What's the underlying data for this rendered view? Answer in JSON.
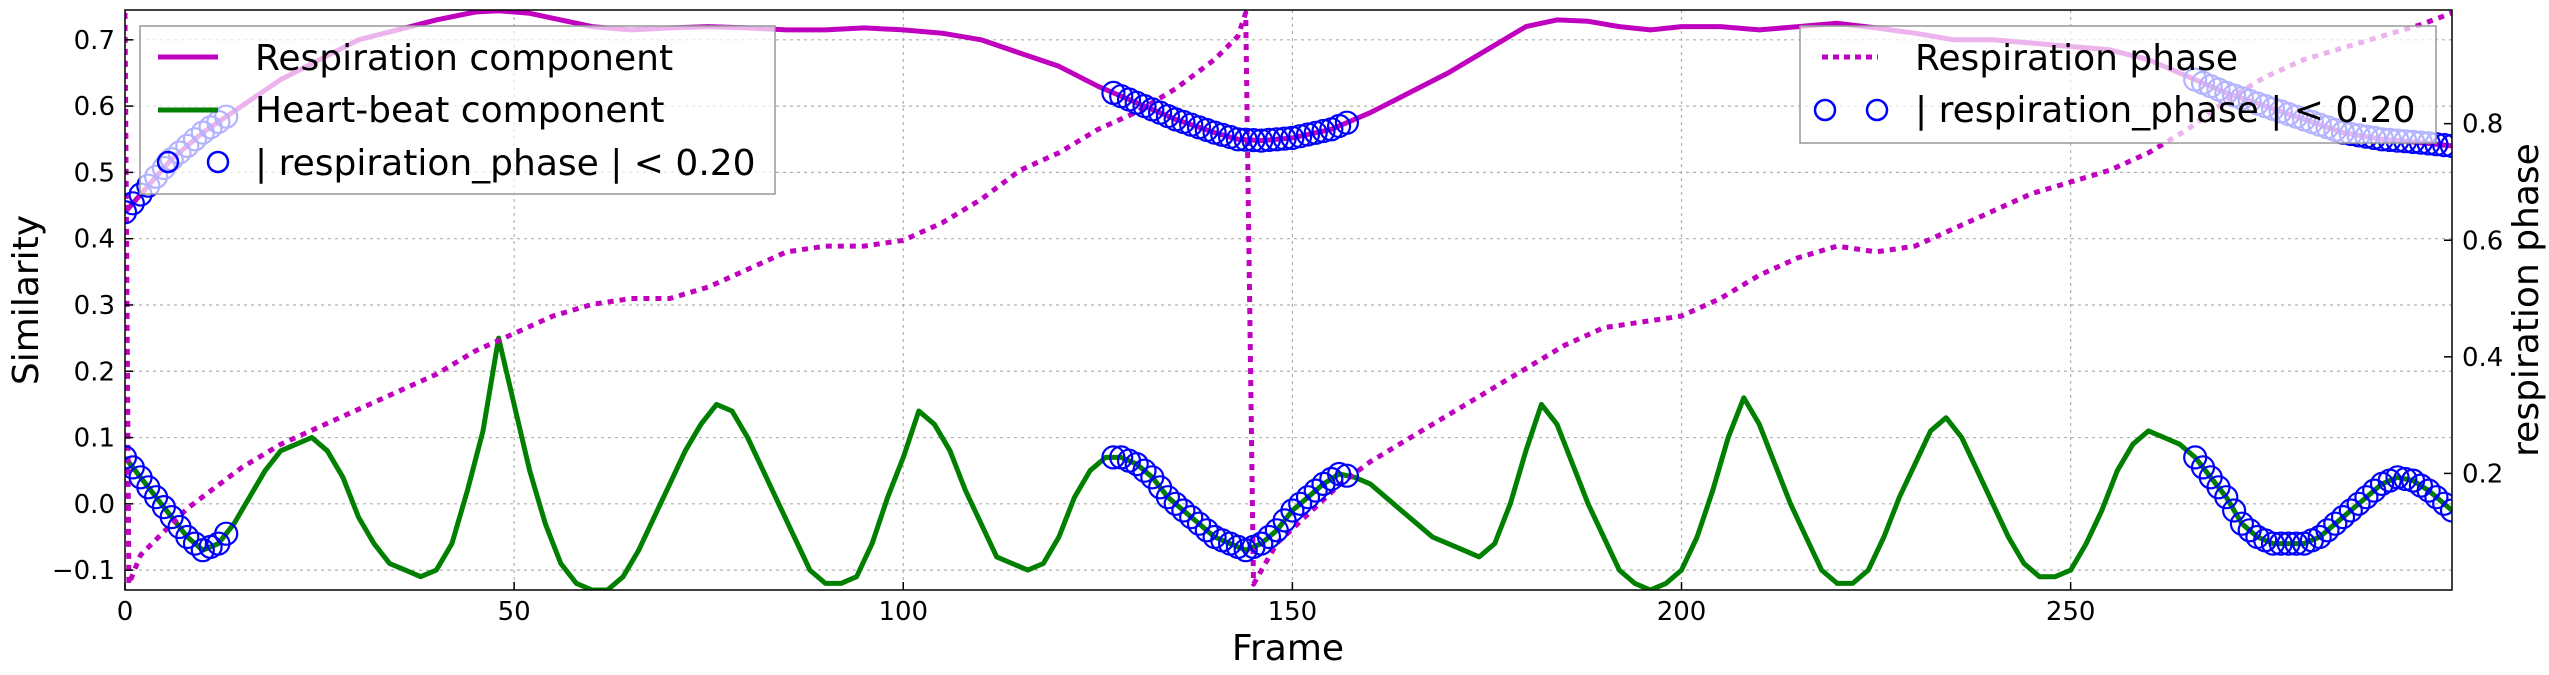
{
  "chart_data": {
    "type": "line",
    "xlabel": "Frame",
    "ylabel_left": "Similarity",
    "ylabel_right": "respiration phase",
    "xlim": [
      0,
      299
    ],
    "ylim_left": [
      -0.13,
      0.745
    ],
    "ylim_right": [
      0.0,
      0.995
    ],
    "x_ticks": [
      0,
      50,
      100,
      150,
      200,
      250
    ],
    "y_left_ticks": [
      -0.1,
      0.0,
      0.1,
      0.2,
      0.3,
      0.4,
      0.5,
      0.6,
      0.7
    ],
    "y_left_tick_labels": [
      "−0.1",
      "0.0",
      "0.1",
      "0.2",
      "0.3",
      "0.4",
      "0.5",
      "0.6",
      "0.7"
    ],
    "y_right_ticks": [
      0.2,
      0.4,
      0.6,
      0.8
    ],
    "y_right_tick_labels": [
      "0.2",
      "0.4",
      "0.6",
      "0.8"
    ],
    "grid": true,
    "marker_threshold": 0.2,
    "series": [
      {
        "name": "Respiration component",
        "axis": "left",
        "color": "#bf00bf",
        "style": "solid",
        "points": [
          [
            0,
            0.44
          ],
          [
            3,
            0.48
          ],
          [
            6,
            0.52
          ],
          [
            10,
            0.56
          ],
          [
            15,
            0.6
          ],
          [
            20,
            0.64
          ],
          [
            25,
            0.67
          ],
          [
            30,
            0.7
          ],
          [
            35,
            0.715
          ],
          [
            40,
            0.73
          ],
          [
            45,
            0.742
          ],
          [
            48,
            0.744
          ],
          [
            52,
            0.74
          ],
          [
            56,
            0.73
          ],
          [
            60,
            0.72
          ],
          [
            65,
            0.715
          ],
          [
            70,
            0.718
          ],
          [
            75,
            0.72
          ],
          [
            80,
            0.718
          ],
          [
            85,
            0.715
          ],
          [
            90,
            0.715
          ],
          [
            95,
            0.718
          ],
          [
            100,
            0.715
          ],
          [
            105,
            0.71
          ],
          [
            110,
            0.7
          ],
          [
            115,
            0.68
          ],
          [
            120,
            0.66
          ],
          [
            125,
            0.63
          ],
          [
            130,
            0.605
          ],
          [
            135,
            0.58
          ],
          [
            140,
            0.56
          ],
          [
            143,
            0.55
          ],
          [
            146,
            0.548
          ],
          [
            150,
            0.552
          ],
          [
            155,
            0.565
          ],
          [
            160,
            0.59
          ],
          [
            165,
            0.62
          ],
          [
            170,
            0.65
          ],
          [
            175,
            0.685
          ],
          [
            180,
            0.72
          ],
          [
            184,
            0.73
          ],
          [
            188,
            0.728
          ],
          [
            192,
            0.72
          ],
          [
            196,
            0.715
          ],
          [
            200,
            0.72
          ],
          [
            205,
            0.72
          ],
          [
            210,
            0.715
          ],
          [
            215,
            0.72
          ],
          [
            220,
            0.725
          ],
          [
            225,
            0.718
          ],
          [
            230,
            0.71
          ],
          [
            235,
            0.7
          ],
          [
            240,
            0.7
          ],
          [
            245,
            0.695
          ],
          [
            250,
            0.69
          ],
          [
            255,
            0.685
          ],
          [
            260,
            0.67
          ],
          [
            265,
            0.645
          ],
          [
            270,
            0.62
          ],
          [
            275,
            0.6
          ],
          [
            280,
            0.58
          ],
          [
            285,
            0.56
          ],
          [
            290,
            0.55
          ],
          [
            295,
            0.545
          ],
          [
            299,
            0.54
          ]
        ]
      },
      {
        "name": "Heart-beat component",
        "axis": "left",
        "color": "#007f00",
        "style": "solid",
        "points": [
          [
            0,
            0.07
          ],
          [
            2,
            0.04
          ],
          [
            4,
            0.01
          ],
          [
            6,
            -0.02
          ],
          [
            8,
            -0.05
          ],
          [
            10,
            -0.07
          ],
          [
            12,
            -0.06
          ],
          [
            14,
            -0.03
          ],
          [
            16,
            0.01
          ],
          [
            18,
            0.05
          ],
          [
            20,
            0.08
          ],
          [
            22,
            0.09
          ],
          [
            24,
            0.1
          ],
          [
            26,
            0.08
          ],
          [
            28,
            0.04
          ],
          [
            30,
            -0.02
          ],
          [
            32,
            -0.06
          ],
          [
            34,
            -0.09
          ],
          [
            36,
            -0.1
          ],
          [
            38,
            -0.11
          ],
          [
            40,
            -0.1
          ],
          [
            42,
            -0.06
          ],
          [
            44,
            0.02
          ],
          [
            46,
            0.11
          ],
          [
            48,
            0.25
          ],
          [
            50,
            0.15
          ],
          [
            52,
            0.05
          ],
          [
            54,
            -0.03
          ],
          [
            56,
            -0.09
          ],
          [
            58,
            -0.12
          ],
          [
            60,
            -0.13
          ],
          [
            62,
            -0.13
          ],
          [
            64,
            -0.11
          ],
          [
            66,
            -0.07
          ],
          [
            68,
            -0.02
          ],
          [
            70,
            0.03
          ],
          [
            72,
            0.08
          ],
          [
            74,
            0.12
          ],
          [
            76,
            0.15
          ],
          [
            78,
            0.14
          ],
          [
            80,
            0.1
          ],
          [
            82,
            0.05
          ],
          [
            84,
            0.0
          ],
          [
            86,
            -0.05
          ],
          [
            88,
            -0.1
          ],
          [
            90,
            -0.12
          ],
          [
            92,
            -0.12
          ],
          [
            94,
            -0.11
          ],
          [
            96,
            -0.06
          ],
          [
            98,
            0.01
          ],
          [
            100,
            0.07
          ],
          [
            102,
            0.14
          ],
          [
            104,
            0.12
          ],
          [
            106,
            0.08
          ],
          [
            108,
            0.02
          ],
          [
            110,
            -0.03
          ],
          [
            112,
            -0.08
          ],
          [
            114,
            -0.09
          ],
          [
            116,
            -0.1
          ],
          [
            118,
            -0.09
          ],
          [
            120,
            -0.05
          ],
          [
            122,
            0.01
          ],
          [
            124,
            0.05
          ],
          [
            126,
            0.07
          ],
          [
            128,
            0.07
          ],
          [
            130,
            0.06
          ],
          [
            132,
            0.04
          ],
          [
            134,
            0.01
          ],
          [
            136,
            -0.01
          ],
          [
            138,
            -0.03
          ],
          [
            140,
            -0.05
          ],
          [
            142,
            -0.06
          ],
          [
            144,
            -0.07
          ],
          [
            146,
            -0.06
          ],
          [
            148,
            -0.04
          ],
          [
            150,
            -0.01
          ],
          [
            152,
            0.01
          ],
          [
            154,
            0.03
          ],
          [
            156,
            0.045
          ],
          [
            158,
            0.04
          ],
          [
            160,
            0.03
          ],
          [
            162,
            0.01
          ],
          [
            164,
            -0.01
          ],
          [
            166,
            -0.03
          ],
          [
            168,
            -0.05
          ],
          [
            170,
            -0.06
          ],
          [
            172,
            -0.07
          ],
          [
            174,
            -0.08
          ],
          [
            176,
            -0.06
          ],
          [
            178,
            0.0
          ],
          [
            180,
            0.08
          ],
          [
            182,
            0.15
          ],
          [
            184,
            0.12
          ],
          [
            186,
            0.06
          ],
          [
            188,
            0.0
          ],
          [
            190,
            -0.05
          ],
          [
            192,
            -0.1
          ],
          [
            194,
            -0.12
          ],
          [
            196,
            -0.13
          ],
          [
            198,
            -0.12
          ],
          [
            200,
            -0.1
          ],
          [
            202,
            -0.05
          ],
          [
            204,
            0.02
          ],
          [
            206,
            0.1
          ],
          [
            208,
            0.16
          ],
          [
            210,
            0.12
          ],
          [
            212,
            0.06
          ],
          [
            214,
            0.0
          ],
          [
            216,
            -0.05
          ],
          [
            218,
            -0.1
          ],
          [
            220,
            -0.12
          ],
          [
            222,
            -0.12
          ],
          [
            224,
            -0.1
          ],
          [
            226,
            -0.05
          ],
          [
            228,
            0.01
          ],
          [
            230,
            0.06
          ],
          [
            232,
            0.11
          ],
          [
            234,
            0.13
          ],
          [
            236,
            0.1
          ],
          [
            238,
            0.05
          ],
          [
            240,
            0.0
          ],
          [
            242,
            -0.05
          ],
          [
            244,
            -0.09
          ],
          [
            246,
            -0.11
          ],
          [
            248,
            -0.11
          ],
          [
            250,
            -0.1
          ],
          [
            252,
            -0.06
          ],
          [
            254,
            -0.01
          ],
          [
            256,
            0.05
          ],
          [
            258,
            0.09
          ],
          [
            260,
            0.11
          ],
          [
            262,
            0.1
          ],
          [
            264,
            0.09
          ],
          [
            266,
            0.07
          ],
          [
            268,
            0.04
          ],
          [
            270,
            0.01
          ],
          [
            272,
            -0.03
          ],
          [
            274,
            -0.05
          ],
          [
            276,
            -0.06
          ],
          [
            278,
            -0.06
          ],
          [
            280,
            -0.06
          ],
          [
            282,
            -0.05
          ],
          [
            284,
            -0.03
          ],
          [
            286,
            -0.01
          ],
          [
            288,
            0.01
          ],
          [
            290,
            0.03
          ],
          [
            292,
            0.04
          ],
          [
            294,
            0.035
          ],
          [
            296,
            0.02
          ],
          [
            298,
            0.0
          ],
          [
            299,
            -0.01
          ]
        ]
      },
      {
        "name": "Respiration phase",
        "axis": "right",
        "color": "#bf00bf",
        "style": "dotted",
        "points": [
          [
            0,
            0.99
          ],
          [
            0.5,
            0.01
          ],
          [
            2,
            0.06
          ],
          [
            5,
            0.1
          ],
          [
            8,
            0.14
          ],
          [
            11,
            0.17
          ],
          [
            15,
            0.21
          ],
          [
            20,
            0.25
          ],
          [
            25,
            0.28
          ],
          [
            30,
            0.31
          ],
          [
            35,
            0.34
          ],
          [
            40,
            0.37
          ],
          [
            45,
            0.41
          ],
          [
            50,
            0.44
          ],
          [
            55,
            0.47
          ],
          [
            60,
            0.49
          ],
          [
            65,
            0.5
          ],
          [
            70,
            0.5
          ],
          [
            75,
            0.52
          ],
          [
            80,
            0.55
          ],
          [
            85,
            0.58
          ],
          [
            90,
            0.59
          ],
          [
            95,
            0.59
          ],
          [
            100,
            0.6
          ],
          [
            105,
            0.63
          ],
          [
            110,
            0.67
          ],
          [
            115,
            0.72
          ],
          [
            120,
            0.75
          ],
          [
            125,
            0.79
          ],
          [
            130,
            0.82
          ],
          [
            135,
            0.86
          ],
          [
            140,
            0.91
          ],
          [
            143,
            0.95
          ],
          [
            144,
            0.99
          ],
          [
            145,
            0.01
          ],
          [
            148,
            0.08
          ],
          [
            152,
            0.13
          ],
          [
            156,
            0.18
          ],
          [
            160,
            0.22
          ],
          [
            165,
            0.26
          ],
          [
            170,
            0.3
          ],
          [
            175,
            0.34
          ],
          [
            180,
            0.38
          ],
          [
            185,
            0.42
          ],
          [
            190,
            0.45
          ],
          [
            195,
            0.46
          ],
          [
            200,
            0.47
          ],
          [
            205,
            0.5
          ],
          [
            210,
            0.54
          ],
          [
            215,
            0.57
          ],
          [
            220,
            0.59
          ],
          [
            225,
            0.58
          ],
          [
            230,
            0.59
          ],
          [
            235,
            0.62
          ],
          [
            240,
            0.65
          ],
          [
            245,
            0.68
          ],
          [
            250,
            0.7
          ],
          [
            255,
            0.72
          ],
          [
            260,
            0.75
          ],
          [
            265,
            0.79
          ],
          [
            270,
            0.84
          ],
          [
            275,
            0.88
          ],
          [
            280,
            0.91
          ],
          [
            285,
            0.93
          ],
          [
            290,
            0.95
          ],
          [
            295,
            0.97
          ],
          [
            299,
            0.99
          ]
        ]
      }
    ],
    "legends": [
      {
        "position": "upper-left",
        "entries": [
          {
            "label": "Respiration component",
            "kind": "line-solid",
            "color": "#bf00bf"
          },
          {
            "label": "Heart-beat component",
            "kind": "line-solid",
            "color": "#007f00"
          },
          {
            "label": "| respiration_phase | < 0.20",
            "kind": "circle-marker",
            "color": "#0000ff"
          }
        ]
      },
      {
        "position": "upper-right",
        "entries": [
          {
            "label": "Respiration phase",
            "kind": "line-dotted",
            "color": "#bf00bf"
          },
          {
            "label": "| respiration_phase | < 0.20",
            "kind": "circle-marker",
            "color": "#0000ff"
          }
        ]
      }
    ]
  }
}
